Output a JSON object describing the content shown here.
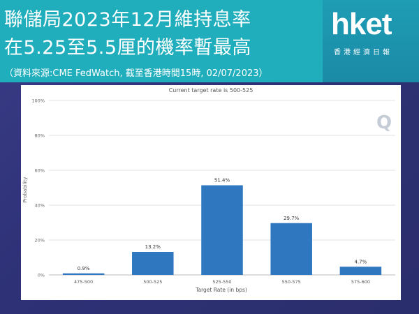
{
  "header": {
    "title_line1": "聯儲局2023年12月維持息率",
    "title_line2": "在5.25至5.5厘的機率暫最高",
    "subtitle": "（資料來源:CME FedWatch, 截至香港時間15時, 02/07/2023）",
    "logo": "hket",
    "logo_sub": "香港經濟日報"
  },
  "chart_data": {
    "type": "bar",
    "title": "Current target rate is 500-525",
    "xlabel": "Target Rate (in bps)",
    "ylabel": "Probability",
    "categories": [
      "475-500",
      "500-525",
      "525-550",
      "550-575",
      "575-600"
    ],
    "values": [
      0.9,
      13.2,
      51.4,
      29.7,
      4.7
    ],
    "data_labels": [
      "0.9%",
      "13.2%",
      "51.4%",
      "29.7%",
      "4.7%"
    ],
    "yticks": [
      "0%",
      "20%",
      "40%",
      "60%",
      "80%",
      "100%"
    ],
    "ylim": [
      0,
      100
    ],
    "bar_color": "#2f77be",
    "watermark": "Q"
  }
}
